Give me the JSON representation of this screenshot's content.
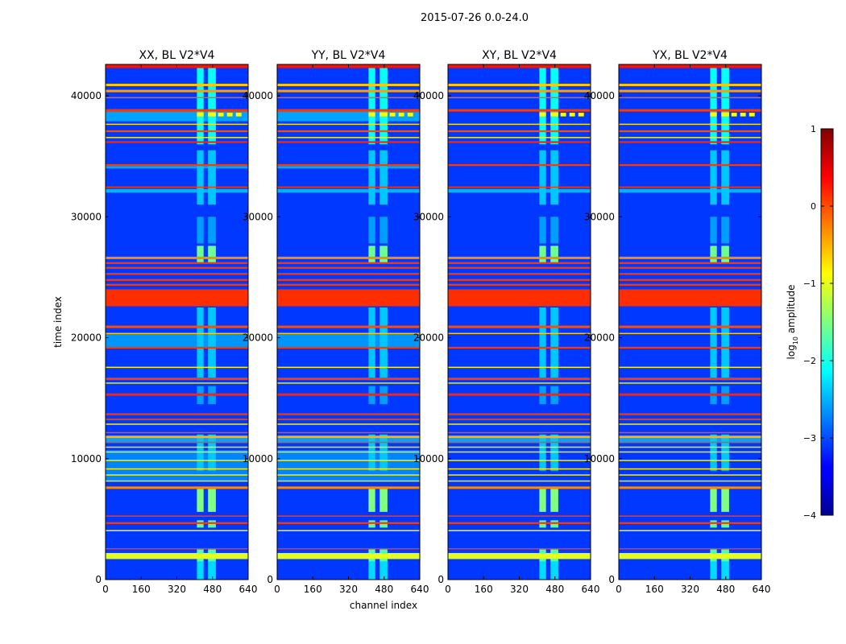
{
  "chart_data": {
    "type": "heatmap",
    "title": "2015-07-26 0.0-24.0",
    "xlabel": "channel index",
    "ylabel": "time index",
    "xlim": [
      0,
      640
    ],
    "ylim": [
      0,
      42600
    ],
    "xticks": [
      0,
      160,
      320,
      480,
      640
    ],
    "yticks": [
      0,
      10000,
      20000,
      30000,
      40000
    ],
    "panels": [
      {
        "title": "XX, BL V2*V4",
        "cross": false
      },
      {
        "title": "YY, BL V2*V4",
        "cross": false
      },
      {
        "title": "XY, BL V2*V4",
        "cross": true
      },
      {
        "title": "YX, BL V2*V4",
        "cross": true
      }
    ],
    "colorbar": {
      "label_prefix": "log",
      "label_sub": "10",
      "label_suffix": " amplitude",
      "range": [
        -4,
        1
      ],
      "ticks": [
        1,
        0,
        -1,
        -2,
        -3,
        -4
      ],
      "tick_labels": [
        "1",
        "0",
        "−1",
        "−2",
        "−3",
        "−4"
      ],
      "colormap": "jet"
    },
    "background_level": -3.1,
    "rfi_channel_bands": [
      [
        410,
        440
      ],
      [
        460,
        495
      ]
    ],
    "bright_rows": [
      {
        "t": [
          42300,
          42600
        ],
        "v": 0.3
      },
      {
        "t": [
          40800,
          41000
        ],
        "v": -0.6
      },
      {
        "t": [
          40300,
          40500
        ],
        "v": -0.4
      },
      {
        "t": [
          39800,
          39900
        ],
        "v": -0.1
      },
      {
        "t": [
          38700,
          38900
        ],
        "v": 0.1
      },
      {
        "t": [
          37600,
          37700
        ],
        "v": -0.7
      },
      {
        "t": [
          37000,
          37150
        ],
        "v": 0.0
      },
      {
        "t": [
          36500,
          36600
        ],
        "v": -0.8
      },
      {
        "t": [
          36100,
          36250
        ],
        "v": 0.2
      },
      {
        "t": [
          34200,
          34350
        ],
        "v": 0.1
      },
      {
        "t": [
          32400,
          32500
        ],
        "v": 0.1
      },
      {
        "t": [
          26500,
          26700
        ],
        "v": -0.3
      },
      {
        "t": [
          26100,
          26250
        ],
        "v": 0.1
      },
      {
        "t": [
          25700,
          25850
        ],
        "v": 0.1
      },
      {
        "t": [
          25200,
          25350
        ],
        "v": 0.1
      },
      {
        "t": [
          24700,
          24850
        ],
        "v": 0.1
      },
      {
        "t": [
          24300,
          24450
        ],
        "v": 0.1
      },
      {
        "t": [
          22600,
          24000
        ],
        "v": 0.15
      },
      {
        "t": [
          20800,
          21000
        ],
        "v": 0.0
      },
      {
        "t": [
          20300,
          20400
        ],
        "v": -0.6
      },
      {
        "t": [
          19100,
          19250
        ],
        "v": 0.1
      },
      {
        "t": [
          17500,
          17600
        ],
        "v": -0.8
      },
      {
        "t": [
          16500,
          16700
        ],
        "v": 0.1
      },
      {
        "t": [
          16200,
          16300
        ],
        "v": -0.8
      },
      {
        "t": [
          15200,
          15400
        ],
        "v": 0.2
      },
      {
        "t": [
          13600,
          13750
        ],
        "v": 0.1
      },
      {
        "t": [
          13200,
          13300
        ],
        "v": 0.0
      },
      {
        "t": [
          12800,
          12900
        ],
        "v": -0.8
      },
      {
        "t": [
          12100,
          12200
        ],
        "v": 0.0
      },
      {
        "t": [
          11700,
          11900
        ],
        "v": -0.5
      },
      {
        "t": [
          11300,
          11400
        ],
        "v": 0.0
      },
      {
        "t": [
          10900,
          11000
        ],
        "v": -0.8
      },
      {
        "t": [
          10500,
          10600
        ],
        "v": -0.8
      },
      {
        "t": [
          9800,
          9900
        ],
        "v": -0.8
      },
      {
        "t": [
          9100,
          9200
        ],
        "v": -0.8
      },
      {
        "t": [
          8600,
          8700
        ],
        "v": -0.8
      },
      {
        "t": [
          8100,
          8200
        ],
        "v": -0.8
      },
      {
        "t": [
          7500,
          7700
        ],
        "v": -0.3
      },
      {
        "t": [
          5200,
          5300
        ],
        "v": 0.1
      },
      {
        "t": [
          4600,
          4750
        ],
        "v": 0.1
      },
      {
        "t": [
          4000,
          4100
        ],
        "v": -0.8
      },
      {
        "t": [
          2500,
          2600
        ],
        "v": 0.1
      },
      {
        "t": [
          1700,
          2200
        ],
        "v": -1.0
      }
    ],
    "faint_bands": [
      {
        "t": [
          37900,
          38700
        ],
        "v": -2.4,
        "parallel_only": true
      },
      {
        "t": [
          34000,
          34200
        ],
        "v": -2.4,
        "parallel_only": true
      },
      {
        "t": [
          32000,
          32300
        ],
        "v": -2.3,
        "parallel_only": false
      },
      {
        "t": [
          19200,
          20300
        ],
        "v": -2.5,
        "parallel_only": true
      },
      {
        "t": [
          11300,
          11700
        ],
        "v": -2.4,
        "parallel_only": false
      },
      {
        "t": [
          8200,
          10700
        ],
        "v": -2.6,
        "parallel_only": true
      }
    ],
    "rfi_segments": [
      {
        "t": [
          36000,
          42300
        ],
        "v": -2.1
      },
      {
        "t": [
          38300,
          38600
        ],
        "v": -0.9,
        "extend_to": 590
      },
      {
        "t": [
          31000,
          35500
        ],
        "v": -2.4
      },
      {
        "t": [
          27800,
          30000
        ],
        "v": -2.6
      },
      {
        "t": [
          26200,
          27600
        ],
        "v": -1.6
      },
      {
        "t": [
          16500,
          22500
        ],
        "v": -2.4
      },
      {
        "t": [
          14500,
          16000
        ],
        "v": -2.6
      },
      {
        "t": [
          9000,
          12000
        ],
        "v": -2.4
      },
      {
        "t": [
          5600,
          7500
        ],
        "v": -1.5
      },
      {
        "t": [
          4300,
          4900
        ],
        "v": -1.7
      },
      {
        "t": [
          1500,
          2500
        ],
        "v": -1.8
      },
      {
        "t": [
          0,
          1500
        ],
        "v": -2.3
      }
    ]
  }
}
